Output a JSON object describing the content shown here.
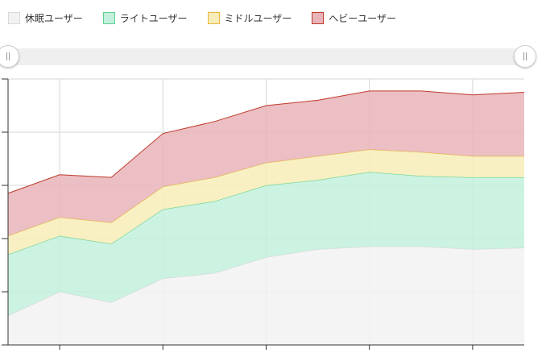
{
  "legend": {
    "items": [
      {
        "label": "休眠ユーザー",
        "fill": "#f2f2f2",
        "stroke": "#d9d9d9"
      },
      {
        "label": "ライトユーザー",
        "fill": "#c3f0dd",
        "stroke": "#5ed18f"
      },
      {
        "label": "ミドルユーザー",
        "fill": "#f7edb8",
        "stroke": "#e6b83a"
      },
      {
        "label": "ヘビーユーザー",
        "fill": "#e8b4b8",
        "stroke": "#c0392b"
      }
    ]
  },
  "slider": {
    "range_start": 0,
    "range_end": 1
  },
  "chart_data": {
    "type": "area",
    "stacked": true,
    "x": [
      0,
      1,
      2,
      3,
      4,
      5,
      6,
      7,
      8,
      9,
      10
    ],
    "ylim": [
      0,
      100
    ],
    "grid": true,
    "legend_position": "top-left",
    "series": [
      {
        "name": "休眠ユーザー",
        "values": [
          11,
          20,
          16,
          25,
          27,
          33,
          36,
          37,
          37,
          36,
          36.5
        ],
        "color": "#f2f2f2",
        "stroke": "#d9d9d9"
      },
      {
        "name": "ライトユーザー",
        "values": [
          23,
          21,
          22,
          26,
          27,
          27,
          26,
          28,
          26.5,
          27,
          26.5
        ],
        "color": "#c3f0dd",
        "stroke": "#5ed18f"
      },
      {
        "name": "ミドルユーザー",
        "values": [
          7,
          7,
          8,
          8.5,
          9,
          8.5,
          9,
          8.5,
          9,
          8,
          8
        ],
        "color": "#f7edb8",
        "stroke": "#e6b83a"
      },
      {
        "name": "ヘビーユーザー",
        "values": [
          16,
          16,
          17,
          20,
          21,
          21.5,
          21,
          22,
          23,
          23,
          24
        ],
        "color": "#e8b4b8",
        "stroke": "#c0392b"
      }
    ]
  }
}
